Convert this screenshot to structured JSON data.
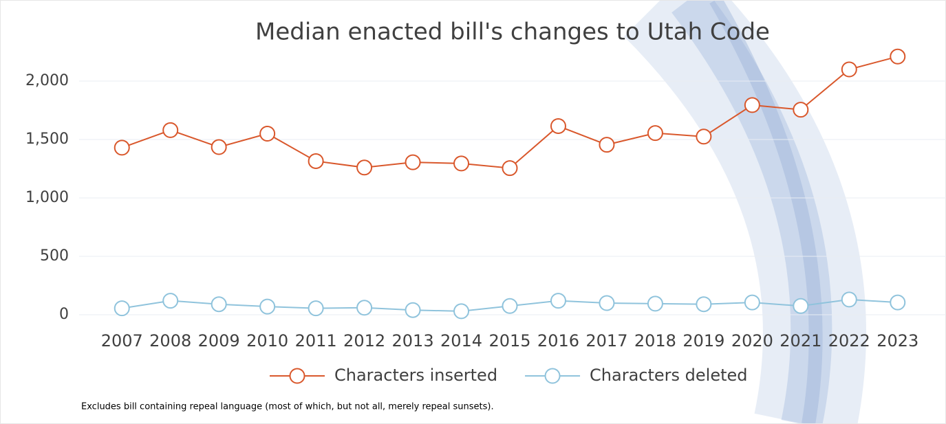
{
  "chart_data": {
    "type": "line",
    "title": "Median enacted bill's changes to Utah Code",
    "categories": [
      "2007",
      "2008",
      "2009",
      "2010",
      "2011",
      "2012",
      "2013",
      "2014",
      "2015",
      "2016",
      "2017",
      "2018",
      "2019",
      "2020",
      "2021",
      "2022",
      "2023"
    ],
    "series": [
      {
        "name": "Characters inserted",
        "color": "#d9572b",
        "values": [
          1430,
          1580,
          1435,
          1550,
          1315,
          1260,
          1305,
          1295,
          1255,
          1615,
          1455,
          1555,
          1525,
          1795,
          1755,
          2100,
          2210
        ]
      },
      {
        "name": "Characters deleted",
        "color": "#8fc3dc",
        "values": [
          55,
          120,
          90,
          70,
          55,
          60,
          40,
          30,
          75,
          120,
          100,
          95,
          90,
          105,
          75,
          130,
          105
        ]
      }
    ],
    "ylim": [
      0,
      2250
    ],
    "yticks": [
      0,
      500,
      {
        "value": 1000,
        "label": "1,000"
      },
      {
        "value": 1500,
        "label": "1,500"
      },
      {
        "value": 2000,
        "label": "2,000"
      }
    ],
    "grid": true,
    "legend": "bottom",
    "note": "Excludes bill containing repeal language (most of which, but not all, merely repeal sunsets)."
  }
}
